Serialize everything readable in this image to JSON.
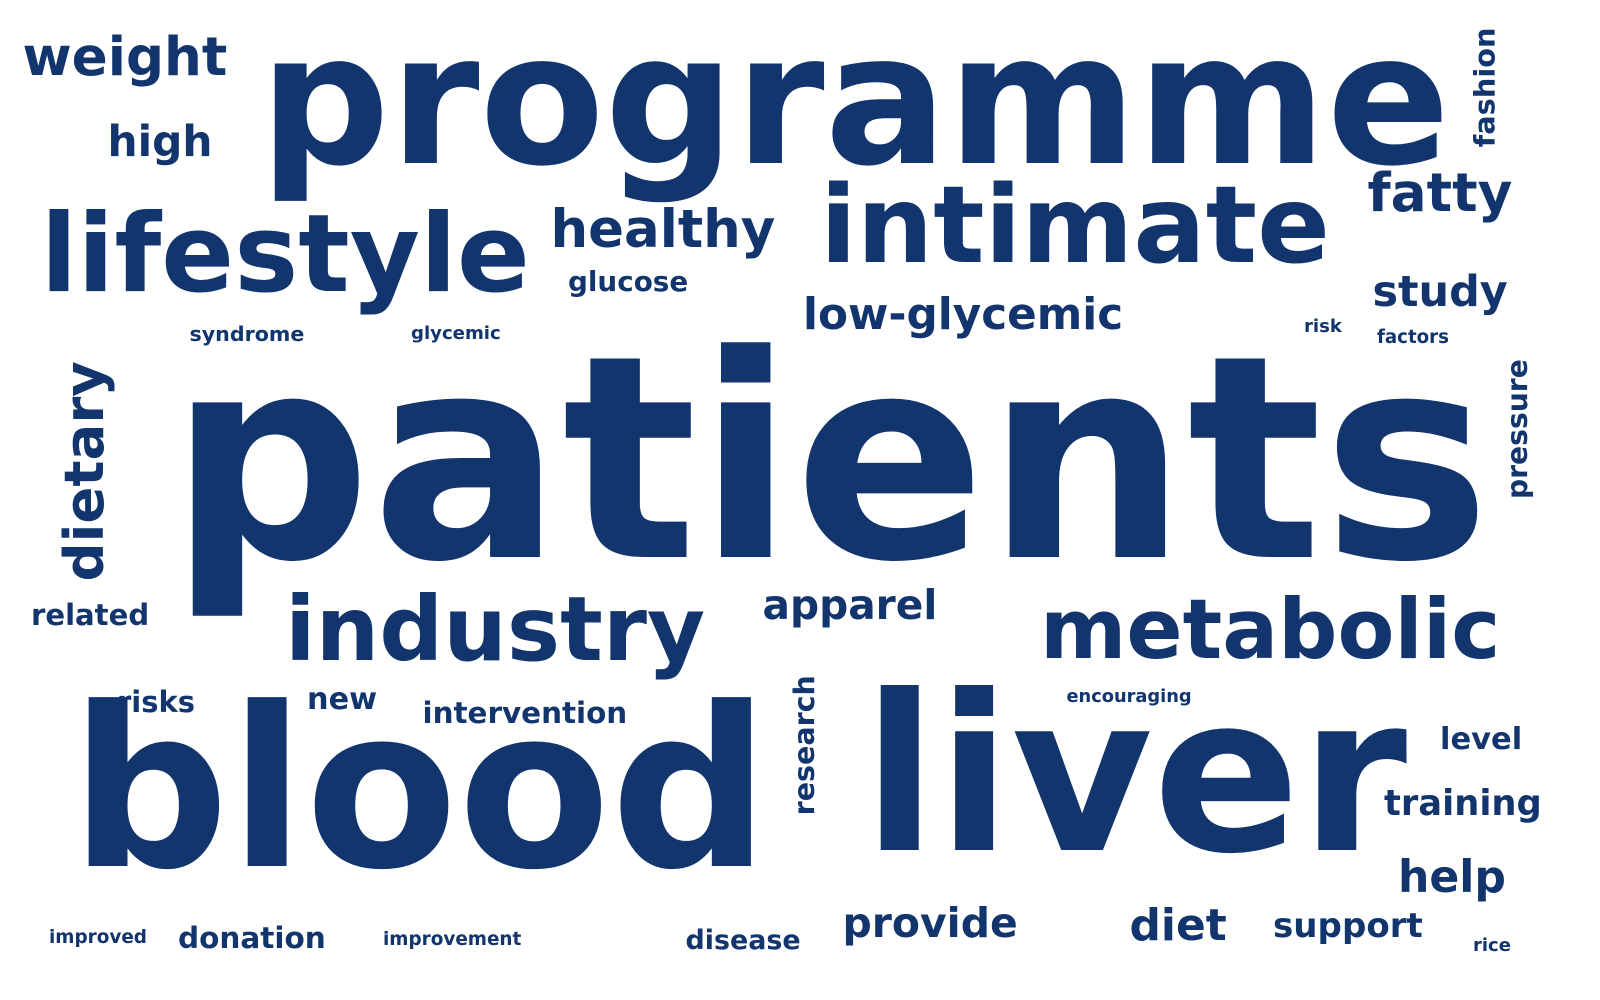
{
  "colors": {
    "background": "#ffffff",
    "word": "#12356e"
  },
  "words": [
    {
      "key": "programme",
      "text": "programme"
    },
    {
      "key": "patients",
      "text": "patients"
    },
    {
      "key": "blood",
      "text": "blood"
    },
    {
      "key": "liver",
      "text": "liver"
    },
    {
      "key": "lifestyle",
      "text": "lifestyle"
    },
    {
      "key": "intimate",
      "text": "intimate"
    },
    {
      "key": "industry",
      "text": "industry"
    },
    {
      "key": "metabolic",
      "text": "metabolic"
    },
    {
      "key": "weight",
      "text": "weight"
    },
    {
      "key": "high",
      "text": "high"
    },
    {
      "key": "healthy",
      "text": "healthy"
    },
    {
      "key": "glucose",
      "text": "glucose"
    },
    {
      "key": "fatty",
      "text": "fatty"
    },
    {
      "key": "fashion",
      "text": "fashion"
    },
    {
      "key": "study",
      "text": "study"
    },
    {
      "key": "low-glycemic",
      "text": "low-glycemic"
    },
    {
      "key": "syndrome",
      "text": "syndrome"
    },
    {
      "key": "glycemic",
      "text": "glycemic"
    },
    {
      "key": "risk",
      "text": "risk"
    },
    {
      "key": "factors",
      "text": "factors"
    },
    {
      "key": "dietary",
      "text": "dietary"
    },
    {
      "key": "pressure",
      "text": "pressure"
    },
    {
      "key": "related",
      "text": "related"
    },
    {
      "key": "apparel",
      "text": "apparel"
    },
    {
      "key": "risks",
      "text": "risks"
    },
    {
      "key": "new",
      "text": "new"
    },
    {
      "key": "intervention",
      "text": "intervention"
    },
    {
      "key": "encouraging",
      "text": "encouraging"
    },
    {
      "key": "research",
      "text": "research"
    },
    {
      "key": "level",
      "text": "level"
    },
    {
      "key": "training",
      "text": "training"
    },
    {
      "key": "help",
      "text": "help"
    },
    {
      "key": "improved",
      "text": "improved"
    },
    {
      "key": "donation",
      "text": "donation"
    },
    {
      "key": "improvement",
      "text": "improvement"
    },
    {
      "key": "disease",
      "text": "disease"
    },
    {
      "key": "provide",
      "text": "provide"
    },
    {
      "key": "diet",
      "text": "diet"
    },
    {
      "key": "support",
      "text": "support"
    },
    {
      "key": "rice",
      "text": "rice"
    }
  ]
}
